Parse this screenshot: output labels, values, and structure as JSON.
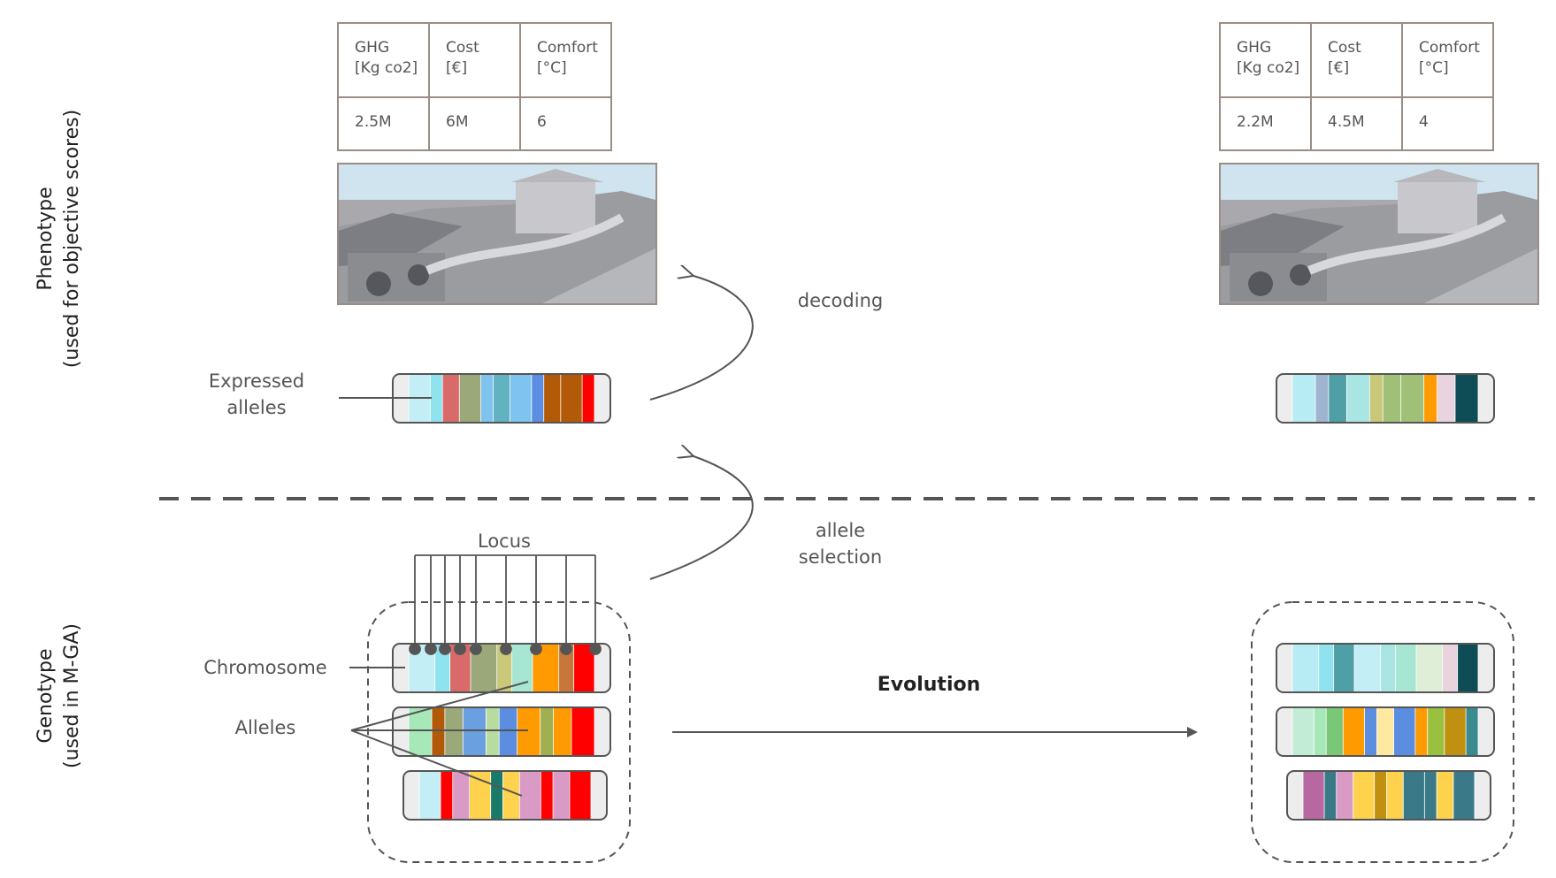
{
  "phenotype_label": "Phenotype\n(used for objective scores)",
  "genotype_label": "Genotype\n(used in M-GA)",
  "tables": [
    {
      "headers": [
        "GHG\n[Kg co2]",
        "Cost\n[€]",
        "Comfort\n[°C]"
      ],
      "values": [
        "2.5M",
        "6M",
        "6"
      ]
    },
    {
      "headers": [
        "GHG\n[Kg co2]",
        "Cost\n[€]",
        "Comfort\n[°C]"
      ],
      "values": [
        "2.2M",
        "4.5M",
        "4"
      ]
    }
  ],
  "labels": {
    "expressed_alleles": "Expressed\nalleles",
    "decoding": "decoding",
    "allele_selection": "allele\nselection",
    "locus": "Locus",
    "chromosome": "Chromosome",
    "alleles": "Alleles",
    "evolution": "Evolution"
  },
  "colors": {
    "chromosome_border": "#555555",
    "dashed_line": "#555555",
    "table_border": "#9a8d86"
  },
  "chromosomes": {
    "expressed_left": [
      "#ededed",
      "#c3eef5",
      "#8fe3ee",
      "#d96a6a",
      "#9aa87a",
      "#7fc3f0",
      "#62b3c2",
      "#7fc3f0",
      "#5b8ee0",
      "#b35a08",
      "#b35a08",
      "#ff0000",
      "#ededed"
    ],
    "expressed_right": [
      "#ededed",
      "#b7ecf4",
      "#9eb4cf",
      "#4f9fa6",
      "#a9e5e3",
      "#c8c878",
      "#a0c078",
      "#a0c078",
      "#ff9a00",
      "#e9d3de",
      "#0e4d55",
      "#ededed"
    ],
    "genotype_left": [
      [
        "#ededed",
        "#c3eef5",
        "#8fe3ee",
        "#d96a6a",
        "#9aa87a",
        "#c8c878",
        "#a6e6d2",
        "#ff9a00",
        "#c8763a",
        "#ff0000",
        "#ededed"
      ],
      [
        "#ededed",
        "#a6e8b8",
        "#b35a08",
        "#9aa87a",
        "#6a9fe0",
        "#b8dca0",
        "#5b8ee0",
        "#ff9a00",
        "#a0b050",
        "#ff9a00",
        "#ff0000",
        "#ededed"
      ],
      [
        "#ededed",
        "#c3eef5",
        "#ff0000",
        "#d99ac5",
        "#ffd24d",
        "#1a7a6a",
        "#ffd24d",
        "#d99ac5",
        "#ff0000",
        "#d99ac5",
        "#ff0000",
        "#ededed"
      ]
    ],
    "genotype_right": [
      [
        "#ededed",
        "#b7ecf4",
        "#8fe3ee",
        "#4f9fa6",
        "#c3eef5",
        "#a9e5e3",
        "#a6e6d2",
        "#dfeed6",
        "#e9d3de",
        "#0e4d55",
        "#ededed"
      ],
      [
        "#ededed",
        "#c3ecd6",
        "#a6e8b8",
        "#78c878",
        "#ff9a00",
        "#5b8ee0",
        "#ffe8a0",
        "#5b8ee0",
        "#ff9a00",
        "#9ac040",
        "#c09010",
        "#3a8a90",
        "#ededed"
      ],
      [
        "#ededed",
        "#b868a0",
        "#3a7a88",
        "#d99ac5",
        "#ffd24d",
        "#c09010",
        "#ffd24d",
        "#3a7a88",
        "#3a7a88",
        "#ffd24d",
        "#3a7a88",
        "#ededed"
      ]
    ]
  }
}
